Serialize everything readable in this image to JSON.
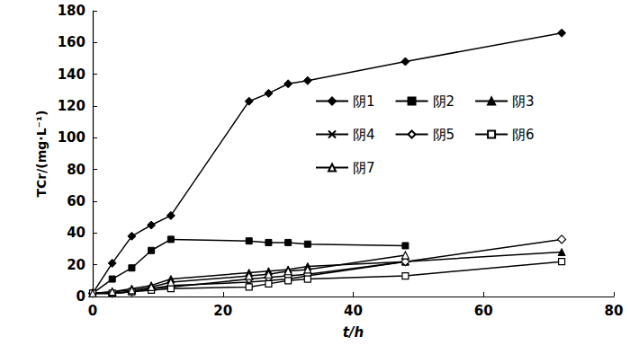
{
  "chart_data": {
    "type": "line",
    "x_label": "t/h",
    "y_label": "TCr/(mg·L⁻¹)",
    "x": [
      0,
      3,
      6,
      9,
      12,
      24,
      27,
      30,
      33,
      48,
      72
    ],
    "series": [
      {
        "name": "阴1",
        "color": "#000000",
        "marker": "diamond",
        "values": [
          2,
          21,
          38,
          45,
          51,
          123,
          128,
          134,
          136,
          148,
          166
        ]
      },
      {
        "name": "阴2",
        "color": "#000000",
        "marker": "square",
        "values": [
          2,
          11,
          18,
          29,
          36,
          35,
          34,
          34,
          33,
          32,
          null
        ]
      },
      {
        "name": "阴3",
        "color": "#000000",
        "marker": "triangle",
        "values": [
          2,
          3,
          5,
          7,
          11,
          15,
          16,
          17,
          19,
          22,
          28
        ]
      },
      {
        "name": "阴4",
        "color": "#000000",
        "marker": "x",
        "values": [
          2,
          2,
          3,
          5,
          7,
          9,
          10,
          11,
          13,
          22,
          null
        ]
      },
      {
        "name": "阴5",
        "color": "#000000",
        "marker": "diamond_open",
        "values": [
          2,
          2,
          3,
          5,
          6,
          11,
          12,
          13,
          14,
          22,
          36
        ]
      },
      {
        "name": "阴6",
        "color": "#000000",
        "marker": "square_open",
        "values": [
          2,
          2,
          3,
          4,
          5,
          6,
          8,
          10,
          11,
          13,
          22
        ]
      },
      {
        "name": "阴7",
        "color": "#000000",
        "marker": "triangle_open",
        "values": [
          2,
          3,
          4,
          6,
          9,
          13,
          14,
          16,
          17,
          26,
          null
        ]
      }
    ],
    "xlim": [
      0,
      80
    ],
    "xticks": [
      0,
      20,
      40,
      60,
      80
    ],
    "ylim": [
      0,
      180
    ],
    "yticks": [
      0,
      20,
      40,
      60,
      80,
      100,
      120,
      140,
      160,
      180
    ],
    "grid": false,
    "legend": "upper right"
  }
}
